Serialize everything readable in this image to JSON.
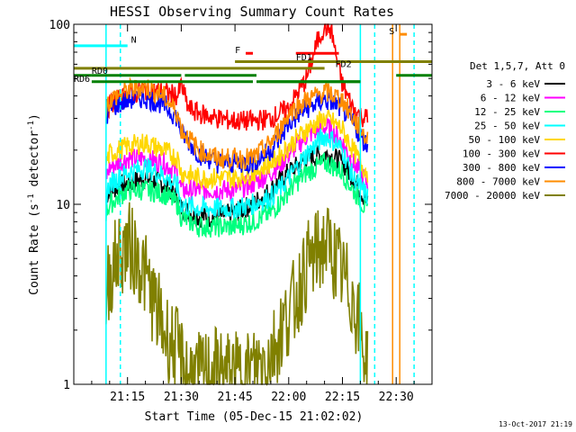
{
  "chart_data": {
    "type": "line",
    "title": "HESSI Observing Summary Count Rates",
    "xlabel": "Start Time (05-Dec-15 21:02:02)",
    "ylabel": "Count Rate (s",
    "ylabel_sup": "-1",
    "ylabel_tail": " detector",
    "ylabel_end": ")",
    "x_unit": "minutes after 21:00",
    "xlim": [
      0,
      100
    ],
    "ylim": [
      1,
      100
    ],
    "y_scale": "log",
    "grid": false,
    "x_ticks": [
      {
        "value": 15,
        "label": "21:15"
      },
      {
        "value": 30,
        "label": "21:30"
      },
      {
        "value": 45,
        "label": "21:45"
      },
      {
        "value": 60,
        "label": "22:00"
      },
      {
        "value": 75,
        "label": "22:15"
      },
      {
        "value": 90,
        "label": "22:30"
      }
    ],
    "y_ticks": [
      {
        "value": 1,
        "label": "1"
      },
      {
        "value": 10,
        "label": "10"
      },
      {
        "value": 100,
        "label": "100"
      }
    ],
    "legend_title": "Det 1,5,7, Att 0",
    "legend_position": "right",
    "series": [
      {
        "name": "3 - 6 keV",
        "color": "#000000",
        "x": [
          9,
          10,
          15,
          20,
          25,
          29,
          30,
          35,
          40,
          45,
          50,
          55,
          58,
          60,
          65,
          70,
          72,
          75,
          78,
          80,
          82
        ],
        "y": [
          11,
          12,
          13,
          14,
          13,
          11,
          9.5,
          8.5,
          8.5,
          9,
          10,
          12,
          14,
          15,
          18,
          19,
          18.5,
          17,
          14,
          12,
          10
        ]
      },
      {
        "name": "6 - 12 keV",
        "color": "#ff00ff",
        "x": [
          9,
          10,
          15,
          20,
          25,
          29,
          30,
          35,
          40,
          45,
          50,
          55,
          58,
          60,
          65,
          70,
          72,
          75,
          78,
          80,
          82
        ],
        "y": [
          14,
          16,
          18,
          18,
          17,
          15,
          12,
          12,
          12,
          12,
          13,
          15,
          17,
          19,
          24,
          27,
          26,
          22,
          17,
          15,
          13
        ]
      },
      {
        "name": "12 - 25 keV",
        "color": "#00ff7f",
        "x": [
          9,
          10,
          15,
          20,
          25,
          29,
          30,
          35,
          40,
          45,
          50,
          55,
          58,
          60,
          65,
          70,
          72,
          75,
          78,
          80,
          82
        ],
        "y": [
          9,
          10,
          12,
          12,
          11.5,
          10,
          8.5,
          7.5,
          7.5,
          7.5,
          8,
          9,
          10.5,
          12,
          15,
          17,
          16.5,
          15,
          12,
          10.5,
          9
        ]
      },
      {
        "name": "25 - 50 keV",
        "color": "#00ffff",
        "x": [
          9,
          10,
          15,
          20,
          25,
          29,
          30,
          35,
          40,
          45,
          50,
          55,
          58,
          60,
          65,
          70,
          72,
          75,
          78,
          80,
          82
        ],
        "y": [
          11,
          13,
          15,
          16,
          14.5,
          12.5,
          10,
          9.5,
          9.5,
          9.5,
          10,
          11,
          12.5,
          14,
          19,
          24,
          23,
          20,
          14,
          12.5,
          11
        ]
      },
      {
        "name": "50 - 100 keV",
        "color": "#ffd700",
        "x": [
          9,
          10,
          15,
          20,
          25,
          29,
          30,
          35,
          40,
          45,
          50,
          55,
          58,
          60,
          65,
          70,
          72,
          75,
          78,
          80,
          82
        ],
        "y": [
          17,
          19,
          21,
          22,
          20,
          18,
          15,
          14,
          14,
          14,
          15,
          17,
          19,
          21,
          26,
          30,
          29,
          26,
          20,
          17,
          15
        ]
      },
      {
        "name": "100 - 300 keV",
        "color": "#ff0000",
        "x": [
          9,
          10,
          15,
          20,
          25,
          29,
          30,
          32,
          35,
          40,
          45,
          50,
          55,
          60,
          62,
          65,
          68,
          70,
          72,
          73,
          75,
          78,
          80,
          82
        ],
        "y": [
          32,
          36,
          40,
          43,
          42,
          40,
          46,
          34,
          32,
          30,
          29,
          29,
          30,
          34,
          40,
          50,
          80,
          98,
          92,
          70,
          46,
          34,
          31,
          30
        ]
      },
      {
        "name": "300 - 800 keV",
        "color": "#0000ff",
        "x": [
          9,
          10,
          15,
          20,
          25,
          29,
          30,
          35,
          40,
          45,
          50,
          55,
          58,
          60,
          65,
          70,
          72,
          75,
          78,
          80,
          82
        ],
        "y": [
          30,
          34,
          38,
          39,
          36,
          30,
          25,
          19,
          17,
          17,
          17,
          20,
          24,
          28,
          34,
          38,
          37,
          34,
          28,
          24,
          21
        ]
      },
      {
        "name": "800 - 7000 keV",
        "color": "#ff8c00",
        "x": [
          9,
          10,
          15,
          20,
          25,
          29,
          30,
          35,
          40,
          45,
          50,
          55,
          58,
          60,
          65,
          70,
          72,
          75,
          78,
          80,
          82
        ],
        "y": [
          34,
          38,
          43,
          45,
          40,
          32,
          26,
          20,
          18,
          18,
          18,
          22,
          27,
          32,
          38,
          42,
          41,
          38,
          30,
          26,
          23
        ]
      },
      {
        "name": "7000 - 20000 keV",
        "color": "#808000",
        "x": [
          9,
          10,
          12,
          15,
          18,
          20,
          22,
          25,
          29,
          31,
          35,
          40,
          45,
          50,
          55,
          58,
          60,
          62,
          65,
          70,
          72,
          75,
          78,
          80,
          82
        ],
        "y": [
          3,
          4,
          5,
          6,
          5,
          4,
          3,
          2,
          1.5,
          1.2,
          1.1,
          1.2,
          1.1,
          1.2,
          1.5,
          2,
          2.5,
          3,
          4.5,
          6,
          5.5,
          4,
          3,
          2,
          1.2
        ]
      }
    ],
    "flags": [
      {
        "label": "N",
        "color": "#00ffff",
        "x_start": -5,
        "x_end": 15,
        "y": 76,
        "label_x": 16,
        "label_y": 79
      },
      {
        "label": "S",
        "color": "#ff8c00",
        "x_start": 91,
        "x_end": 93,
        "y": 88,
        "label_x": 88,
        "label_y": 88
      },
      {
        "label": "F",
        "color": "#ff0000",
        "x_start": 48,
        "x_end": 50,
        "y": 69,
        "label_x": 45,
        "label_y": 69
      },
      {
        "label": "FD1",
        "color": "#ff0000",
        "x_start": 62,
        "x_end": 74,
        "y": 69,
        "label_x": 62,
        "label_y": 63
      },
      {
        "label": "FD2",
        "color": "#808000",
        "x_start": 45,
        "x_end": 100,
        "y": 62,
        "label_x": 73,
        "label_y": 58
      },
      {
        "label": "RD0",
        "color": "#808000",
        "x_start": -5,
        "x_end": 70,
        "y": 57,
        "label_x": 5,
        "label_y": 53
      },
      {
        "label": "RD6",
        "color": "#008000",
        "x_start": -5,
        "x_end": 5,
        "y": 52,
        "label_x": -5,
        "label_y": 48
      }
    ],
    "rd0_segments": [
      {
        "color": "#008000",
        "x_start": 5,
        "x_end": 30,
        "y": 52
      },
      {
        "color": "#008000",
        "x_start": 31,
        "x_end": 51,
        "y": 52
      },
      {
        "color": "#008000",
        "x_start": 51,
        "x_end": 80,
        "y": 48
      },
      {
        "color": "#008000",
        "x_start": 90,
        "x_end": 100,
        "y": 52
      }
    ],
    "rd6_segments": [
      {
        "color": "#008000",
        "x_start": 5,
        "x_end": 50,
        "y": 48
      },
      {
        "color": "#008000",
        "x_start": 52,
        "x_end": 80,
        "y": 48
      }
    ],
    "vertical_lines": [
      {
        "x": 9,
        "color": "#00ffff",
        "dashed": false
      },
      {
        "x": 13,
        "color": "#00ffff",
        "dashed": true
      },
      {
        "x": 80,
        "color": "#00ffff",
        "dashed": false
      },
      {
        "x": 84,
        "color": "#00ffff",
        "dashed": true
      },
      {
        "x": 89,
        "color": "#ff8c00",
        "dashed": false
      },
      {
        "x": 91,
        "color": "#ff8c00",
        "dashed": false
      },
      {
        "x": 95,
        "color": "#00ffff",
        "dashed": true
      }
    ]
  },
  "footer": {
    "timestamp": "13-Oct-2017 21:19"
  }
}
